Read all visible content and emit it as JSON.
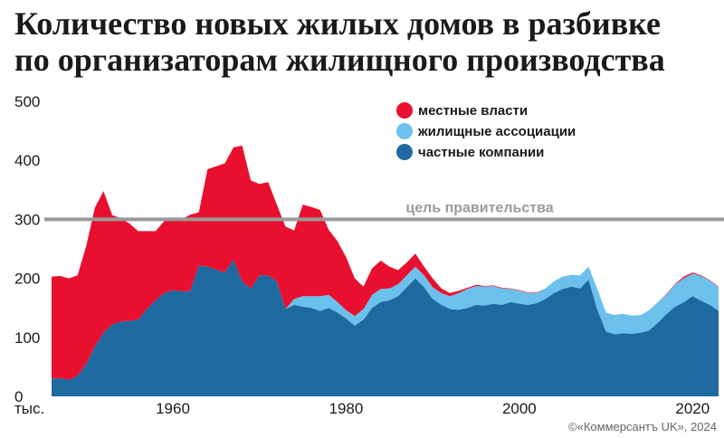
{
  "chart_data": {
    "type": "area",
    "stacked": true,
    "title_lines": [
      "Количество новых жилых домов в разбивке",
      "по организаторам жилищного производства"
    ],
    "unit_label": "тыс.",
    "credit": "©«Коммерсантъ UK», 2024",
    "ylim": [
      0,
      500
    ],
    "y_ticks": [
      0,
      100,
      200,
      300,
      400,
      500
    ],
    "xlim": [
      1946,
      2023
    ],
    "x_ticks": [
      1960,
      1980,
      2000,
      2020
    ],
    "grid": false,
    "legend_position": "top-right",
    "reference_line": {
      "label": "цель правительства",
      "value": 300
    },
    "x": [
      1946,
      1947,
      1948,
      1949,
      1950,
      1951,
      1952,
      1953,
      1954,
      1955,
      1956,
      1957,
      1958,
      1959,
      1960,
      1961,
      1962,
      1963,
      1964,
      1965,
      1966,
      1967,
      1968,
      1969,
      1970,
      1971,
      1972,
      1973,
      1974,
      1975,
      1976,
      1977,
      1978,
      1979,
      1980,
      1981,
      1982,
      1983,
      1984,
      1985,
      1986,
      1987,
      1988,
      1989,
      1990,
      1991,
      1992,
      1993,
      1994,
      1995,
      1996,
      1997,
      1998,
      1999,
      2000,
      2001,
      2002,
      2003,
      2004,
      2005,
      2006,
      2007,
      2008,
      2009,
      2010,
      2011,
      2012,
      2013,
      2014,
      2015,
      2016,
      2017,
      2018,
      2019,
      2020,
      2021,
      2022,
      2023
    ],
    "series": [
      {
        "name": "частные компании",
        "color": "#1e6aa0",
        "values": [
          30,
          31,
          28,
          35,
          55,
          85,
          108,
          122,
          127,
          128,
          130,
          148,
          163,
          175,
          180,
          178,
          178,
          222,
          220,
          215,
          210,
          232,
          195,
          183,
          205,
          205,
          195,
          148,
          155,
          152,
          150,
          145,
          150,
          142,
          132,
          120,
          130,
          150,
          160,
          163,
          170,
          185,
          200,
          185,
          165,
          155,
          148,
          147,
          150,
          155,
          154,
          157,
          155,
          160,
          157,
          155,
          158,
          165,
          175,
          182,
          186,
          183,
          198,
          147,
          110,
          105,
          107,
          106,
          108,
          112,
          125,
          140,
          152,
          160,
          170,
          162,
          155,
          145
        ]
      },
      {
        "name": "жилищные ассоциации",
        "color": "#6cc1ec",
        "values": [
          0,
          0,
          0,
          0,
          0,
          0,
          0,
          0,
          0,
          0,
          0,
          0,
          0,
          0,
          0,
          0,
          0,
          0,
          0,
          0,
          0,
          0,
          0,
          0,
          0,
          0,
          0,
          0,
          10,
          18,
          20,
          25,
          22,
          18,
          14,
          16,
          18,
          22,
          22,
          20,
          20,
          20,
          20,
          20,
          20,
          20,
          22,
          28,
          32,
          32,
          32,
          30,
          28,
          22,
          22,
          20,
          17,
          18,
          20,
          21,
          20,
          22,
          22,
          35,
          32,
          33,
          33,
          31,
          30,
          34,
          35,
          33,
          38,
          40,
          38,
          42,
          41,
          40
        ]
      },
      {
        "name": "местные власти",
        "color": "#e8102e",
        "values": [
          173,
          173,
          172,
          170,
          200,
          235,
          240,
          185,
          175,
          165,
          150,
          132,
          117,
          122,
          120,
          122,
          130,
          90,
          165,
          175,
          185,
          190,
          230,
          183,
          155,
          158,
          130,
          140,
          116,
          155,
          151,
          146,
          110,
          103,
          90,
          64,
          38,
          45,
          48,
          37,
          24,
          22,
          22,
          15,
          15,
          8,
          5,
          4,
          2,
          2,
          1,
          1,
          1,
          1,
          1,
          1,
          1,
          0,
          0,
          0,
          0,
          0,
          0,
          0,
          0,
          0,
          0,
          0,
          0,
          0,
          0,
          1,
          1,
          3,
          2,
          1,
          1,
          1
        ]
      }
    ]
  }
}
